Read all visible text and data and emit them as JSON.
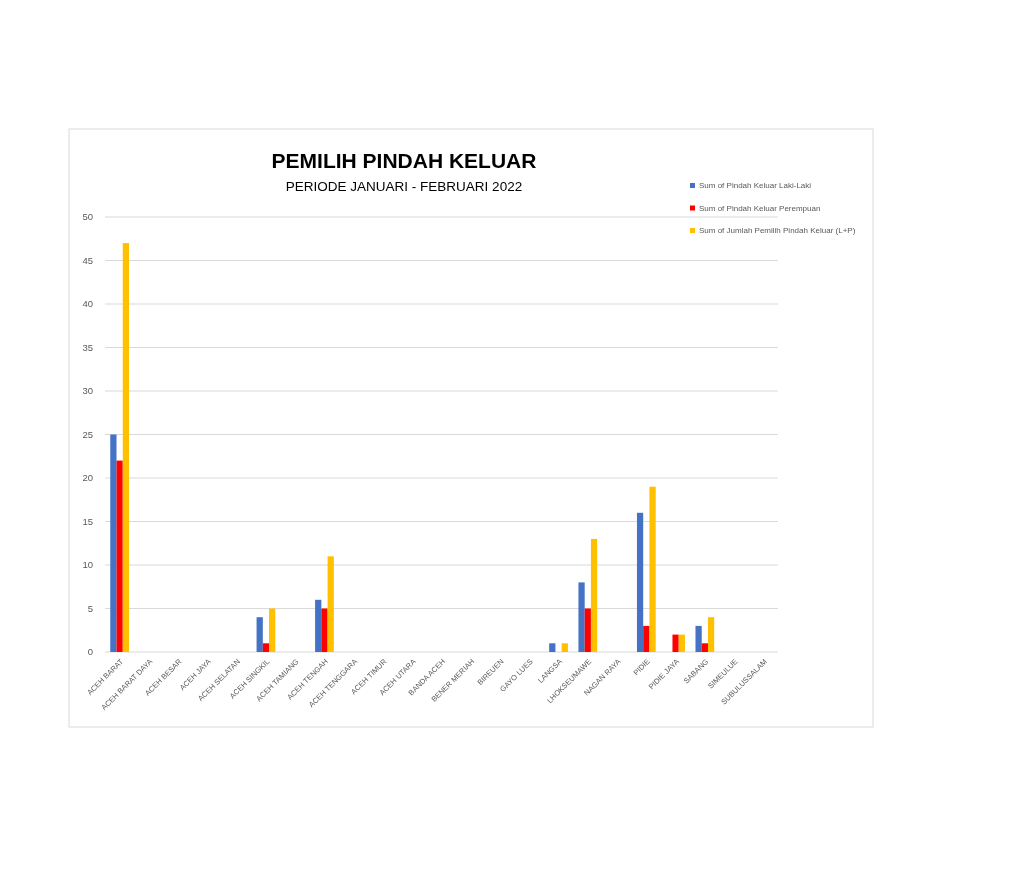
{
  "chart_data": {
    "type": "bar",
    "title": "PEMILIH PINDAH KELUAR",
    "subtitle": "PERIODE JANUARI - FEBRUARI 2022",
    "categories": [
      "ACEH BARAT",
      "ACEH BARAT DAYA",
      "ACEH BESAR",
      "ACEH JAYA",
      "ACEH SELATAN",
      "ACEH SINGKIL",
      "ACEH TAMIANG",
      "ACEH TENGAH",
      "ACEH TENGGARA",
      "ACEH TIMUR",
      "ACEH UTARA",
      "BANDA ACEH",
      "BENER MERIAH",
      "BIREUEN",
      "GAYO LUES",
      "LANGSA",
      "LHOKSEUMAWE",
      "NAGAN RAYA",
      "PIDIE",
      "PIDIE JAYA",
      "SABANG",
      "SIMEULUE",
      "SUBULUSSALAM"
    ],
    "series": [
      {
        "name": "Sum of Pindah Keluar Laki-Laki",
        "color": "#4472c4",
        "values": [
          25,
          0,
          0,
          0,
          0,
          4,
          0,
          6,
          0,
          0,
          0,
          0,
          0,
          0,
          0,
          1,
          8,
          0,
          16,
          0,
          3,
          0,
          0
        ]
      },
      {
        "name": "Sum of Pindah Keluar Perempuan",
        "color": "#ff0000",
        "values": [
          22,
          0,
          0,
          0,
          0,
          1,
          0,
          5,
          0,
          0,
          0,
          0,
          0,
          0,
          0,
          0,
          5,
          0,
          3,
          2,
          1,
          0,
          0
        ]
      },
      {
        "name": "Sum of Jumlah Pemilih Pindah Keluar (L+P)",
        "color": "#ffc000",
        "values": [
          47,
          0,
          0,
          0,
          0,
          5,
          0,
          11,
          0,
          0,
          0,
          0,
          0,
          0,
          0,
          1,
          13,
          0,
          19,
          2,
          4,
          0,
          0
        ]
      }
    ],
    "ylim": [
      0,
      50
    ],
    "yticks": [
      0,
      5,
      10,
      15,
      20,
      25,
      30,
      35,
      40,
      45,
      50
    ],
    "grid": "y",
    "legend": "top right"
  }
}
